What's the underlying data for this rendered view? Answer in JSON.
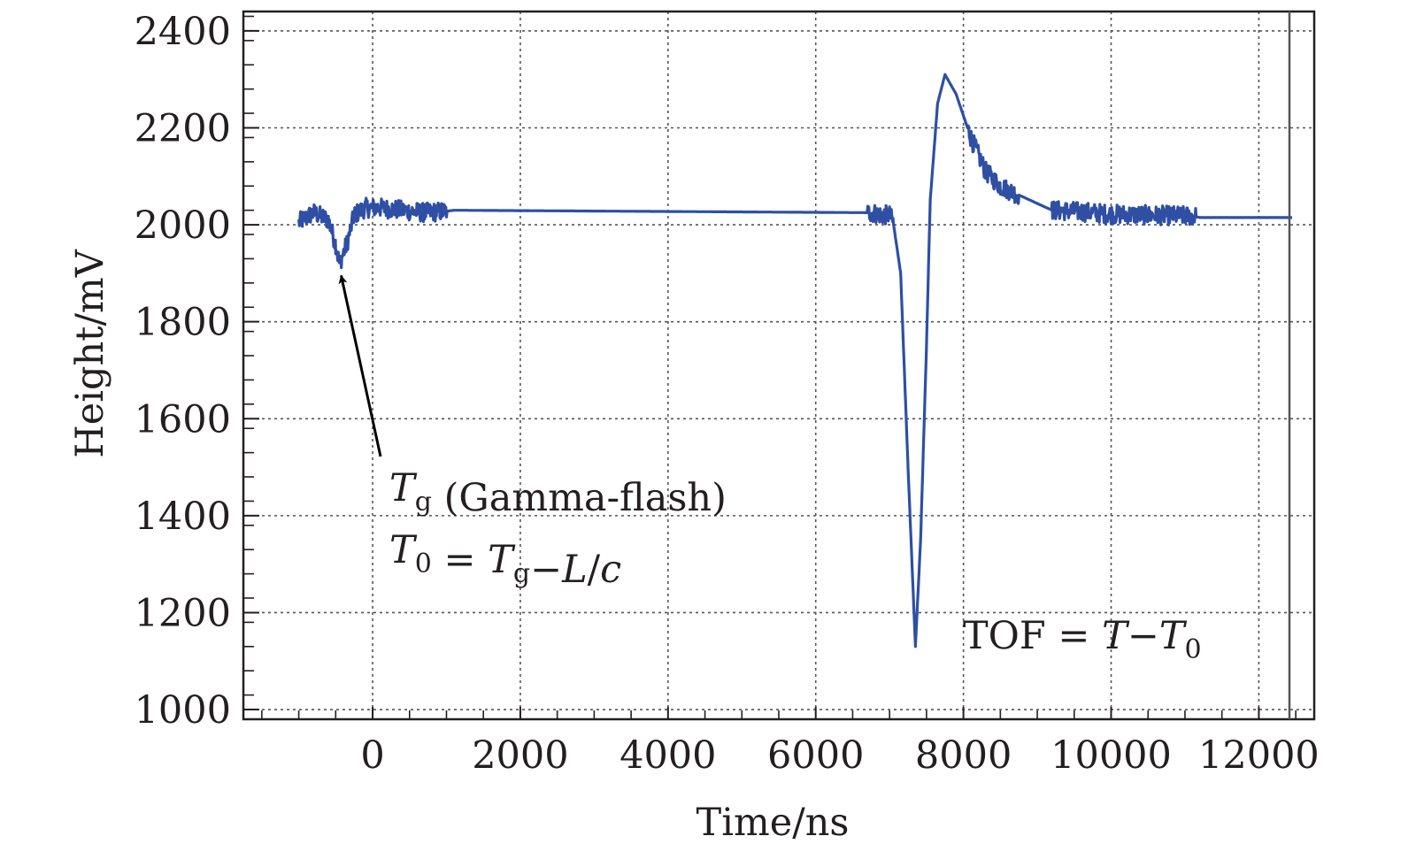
{
  "chart_data": {
    "type": "line",
    "xlabel": "Time/ns",
    "ylabel": "Height/mV",
    "xlim": [
      -1750,
      12750
    ],
    "ylim": [
      980,
      2440
    ],
    "xticks": [
      0,
      2000,
      4000,
      6000,
      8000,
      10000,
      12000
    ],
    "yticks": [
      1000,
      1200,
      1400,
      1600,
      1800,
      2000,
      2200,
      2400
    ],
    "grid": true,
    "line_color": "#2e4fa3",
    "series": [
      {
        "points": [
          [
            -1000,
            2005
          ],
          [
            -800,
            2025
          ],
          [
            -600,
            2010
          ],
          [
            -500,
            1960
          ],
          [
            -450,
            1920
          ],
          [
            -350,
            1960
          ],
          [
            -250,
            2020
          ],
          [
            -100,
            2035
          ],
          [
            100,
            2035
          ],
          [
            400,
            2030
          ],
          [
            700,
            2025
          ],
          [
            1000,
            2028
          ],
          [
            1100,
            2030
          ],
          [
            6750,
            2025
          ],
          [
            6900,
            2020
          ],
          [
            7000,
            2020
          ],
          [
            7050,
            2005
          ],
          [
            7150,
            1900
          ],
          [
            7250,
            1500
          ],
          [
            7350,
            1130
          ],
          [
            7420,
            1350
          ],
          [
            7500,
            1750
          ],
          [
            7550,
            2050
          ],
          [
            7650,
            2250
          ],
          [
            7750,
            2310
          ],
          [
            7900,
            2270
          ],
          [
            8100,
            2180
          ],
          [
            8300,
            2110
          ],
          [
            8500,
            2080
          ],
          [
            8700,
            2065
          ],
          [
            9200,
            2030
          ],
          [
            9500,
            2028
          ],
          [
            10000,
            2022
          ],
          [
            10500,
            2020
          ],
          [
            11100,
            2018
          ],
          [
            11200,
            2015
          ],
          [
            12450,
            2015
          ]
        ],
        "noisy_ranges": [
          [
            -1000,
            1000
          ],
          [
            6700,
            7050
          ],
          [
            8050,
            8750
          ],
          [
            9200,
            11150
          ]
        ]
      }
    ],
    "annotations": [
      {
        "kind": "arrow",
        "target": [
          -450,
          1910
        ],
        "tail": [
          150,
          1530
        ],
        "lines": [
          [
            {
              "t": "T",
              "s": "i"
            },
            {
              "t": "g",
              "s": "b"
            },
            {
              "t": " (Gamma-flash)",
              "s": "n"
            }
          ],
          [
            {
              "t": "T",
              "s": "i"
            },
            {
              "t": "0",
              "s": "b"
            },
            {
              "t": " = ",
              "s": "n"
            },
            {
              "t": "T",
              "s": "i"
            },
            {
              "t": "g",
              "s": "b"
            },
            {
              "t": "−",
              "s": "n"
            },
            {
              "t": "L",
              "s": "i"
            },
            {
              "t": "/",
              "s": "n"
            },
            {
              "t": "c",
              "s": "i"
            }
          ]
        ]
      },
      {
        "kind": "label",
        "lines": [
          [
            {
              "t": "TOF = ",
              "s": "n"
            },
            {
              "t": "T",
              "s": "i"
            },
            {
              "t": "−",
              "s": "n"
            },
            {
              "t": "T",
              "s": "i"
            },
            {
              "t": "0",
              "s": "b"
            }
          ]
        ]
      }
    ]
  }
}
